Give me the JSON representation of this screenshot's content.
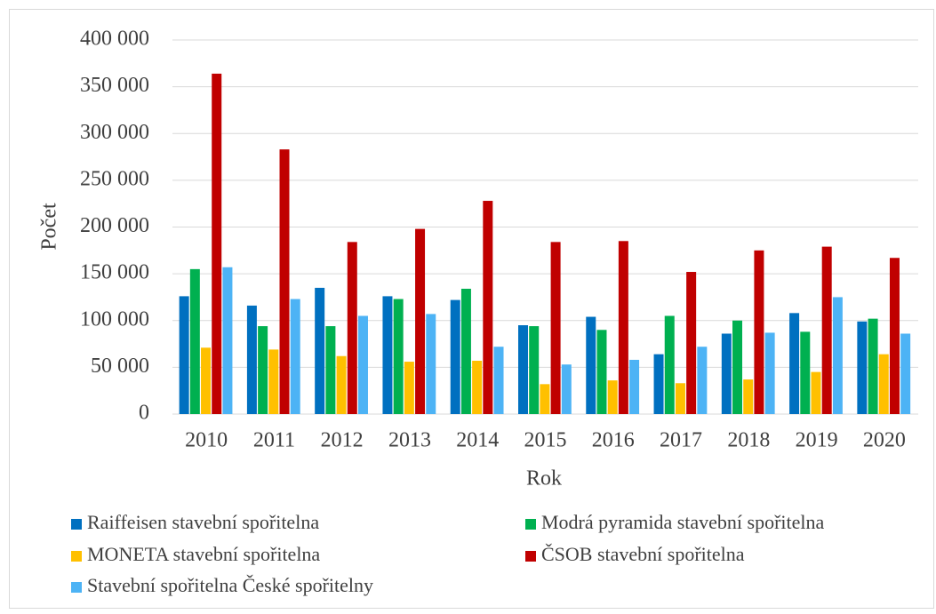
{
  "chart_data": {
    "type": "bar",
    "x_label": "Rok",
    "y_label": "Počet",
    "categories": [
      "2010",
      "2011",
      "2012",
      "2013",
      "2014",
      "2015",
      "2016",
      "2017",
      "2018",
      "2019",
      "2020"
    ],
    "series": [
      {
        "name": "Raiffeisen stavební spořitelna",
        "color": "#0070c0",
        "values": [
          126000,
          116000,
          135000,
          126000,
          122000,
          95000,
          104000,
          64000,
          86000,
          108000,
          99000
        ]
      },
      {
        "name": "Modrá pyramida stavební spořitelna",
        "color": "#00b050",
        "values": [
          155000,
          94000,
          94000,
          123000,
          134000,
          94000,
          90000,
          105000,
          100000,
          88000,
          102000
        ]
      },
      {
        "name": "MONETA stavební spořitelna",
        "color": "#ffc000",
        "values": [
          71000,
          69000,
          62000,
          56000,
          57000,
          32000,
          36000,
          33000,
          37000,
          45000,
          64000
        ]
      },
      {
        "name": "ČSOB stavební spořitelna",
        "color": "#c00000",
        "values": [
          364000,
          283000,
          184000,
          198000,
          228000,
          184000,
          185000,
          152000,
          175000,
          179000,
          167000
        ]
      },
      {
        "name": "Stavební spořitelna České spořitelny",
        "color": "#4db3f5",
        "values": [
          157000,
          123000,
          105000,
          107000,
          72000,
          53000,
          58000,
          72000,
          87000,
          125000,
          86000
        ]
      }
    ],
    "ylim": [
      0,
      400000
    ],
    "yticks": [
      0,
      {
        "value": 50000,
        "label": "50 000"
      },
      {
        "value": 100000,
        "label": "100 000"
      },
      {
        "value": 150000,
        "label": "150 000"
      },
      {
        "value": 200000,
        "label": "200 000"
      },
      {
        "value": 250000,
        "label": "250 000"
      },
      {
        "value": 300000,
        "label": "300 000"
      },
      {
        "value": 350000,
        "label": "350 000"
      },
      {
        "value": 400000,
        "label": "400 000"
      }
    ],
    "grid": true
  }
}
